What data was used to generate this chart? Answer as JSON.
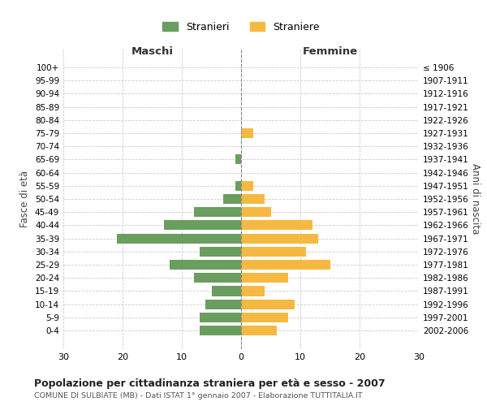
{
  "age_groups": [
    "100+",
    "95-99",
    "90-94",
    "85-89",
    "80-84",
    "75-79",
    "70-74",
    "65-69",
    "60-64",
    "55-59",
    "50-54",
    "45-49",
    "40-44",
    "35-39",
    "30-34",
    "25-29",
    "20-24",
    "15-19",
    "10-14",
    "5-9",
    "0-4"
  ],
  "birth_years": [
    "≤ 1906",
    "1907-1911",
    "1912-1916",
    "1917-1921",
    "1922-1926",
    "1927-1931",
    "1932-1936",
    "1937-1941",
    "1942-1946",
    "1947-1951",
    "1952-1956",
    "1957-1961",
    "1962-1966",
    "1967-1971",
    "1972-1976",
    "1977-1981",
    "1982-1986",
    "1987-1991",
    "1992-1996",
    "1997-2001",
    "2002-2006"
  ],
  "males": [
    0,
    0,
    0,
    0,
    0,
    0,
    0,
    1,
    0,
    1,
    3,
    8,
    13,
    21,
    7,
    12,
    8,
    5,
    6,
    7,
    7
  ],
  "females": [
    0,
    0,
    0,
    0,
    0,
    2,
    0,
    0,
    0,
    2,
    4,
    5,
    12,
    13,
    11,
    15,
    8,
    4,
    9,
    8,
    6
  ],
  "male_color": "#6a9e5f",
  "female_color": "#f5b942",
  "title": "Popolazione per cittadinanza straniera per età e sesso - 2007",
  "subtitle": "COMUNE DI SULBIATE (MB) - Dati ISTAT 1° gennaio 2007 - Elaborazione TUTTITALIA.IT",
  "xlabel_left": "Maschi",
  "xlabel_right": "Femmine",
  "ylabel_left": "Fasce di età",
  "ylabel_right": "Anni di nascita",
  "legend_male": "Stranieri",
  "legend_female": "Straniere",
  "xlim": 30,
  "background_color": "#ffffff",
  "grid_color": "#cccccc"
}
